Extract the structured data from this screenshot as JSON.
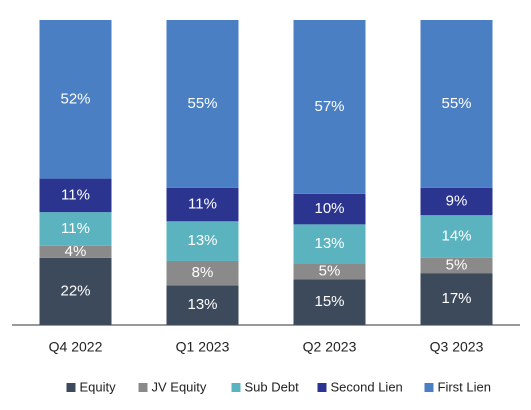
{
  "chart_data": {
    "type": "stacked_bar",
    "categories": [
      "Q4 2022",
      "Q1 2023",
      "Q2 2023",
      "Q3 2023"
    ],
    "series": [
      {
        "name": "Equity",
        "color": "#3d4a5c",
        "values": [
          22,
          13,
          15,
          17
        ],
        "value_labels": [
          "22%",
          "13%",
          "15%",
          "17%"
        ]
      },
      {
        "name": "JV Equity",
        "color": "#8a8a8a",
        "values": [
          4,
          8,
          5,
          5
        ],
        "value_labels": [
          "4%",
          "8%",
          "5%",
          "5%"
        ]
      },
      {
        "name": "Sub Debt",
        "color": "#5bb3c0",
        "values": [
          11,
          13,
          13,
          14
        ],
        "value_labels": [
          "11%",
          "13%",
          "13%",
          "14%"
        ]
      },
      {
        "name": "Second Lien",
        "color": "#2b3590",
        "values": [
          11,
          11,
          10,
          9
        ],
        "value_labels": [
          "11%",
          "11%",
          "10%",
          "9%"
        ]
      },
      {
        "name": "First Lien",
        "color": "#4a7fc4",
        "values": [
          52,
          55,
          57,
          55
        ],
        "value_labels": [
          "52%",
          "55%",
          "57%",
          "55%"
        ]
      }
    ]
  }
}
